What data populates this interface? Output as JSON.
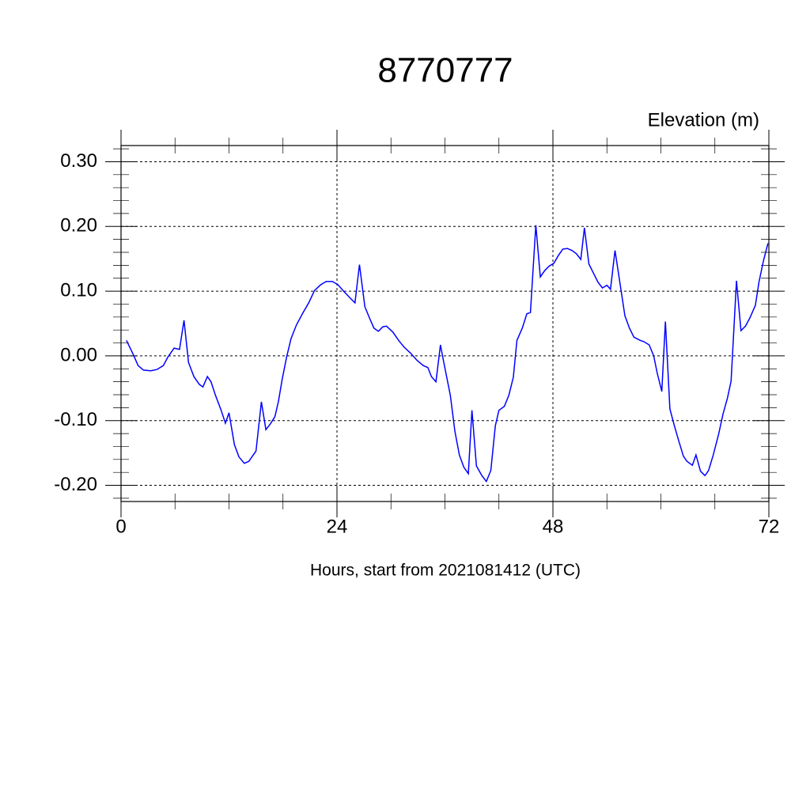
{
  "chart_data": {
    "type": "line",
    "title": "8770777",
    "ylabel": "Elevation (m)",
    "xlabel": "Hours, start from 2021081412 (UTC)",
    "xlim": [
      0,
      72
    ],
    "ylim": [
      -0.225,
      0.325
    ],
    "xticks": [
      0,
      24,
      48,
      72
    ],
    "xminorticks": [
      6,
      12,
      18,
      30,
      36,
      42,
      54,
      60,
      66
    ],
    "yticks": [
      {
        "value": -0.2,
        "label": "-0.20"
      },
      {
        "value": -0.1,
        "label": "-0.10"
      },
      {
        "value": 0,
        "label": "0.00"
      },
      {
        "value": 0.1,
        "label": "0.10"
      },
      {
        "value": 0.2,
        "label": "0.20"
      },
      {
        "value": 0.3,
        "label": "0.30"
      }
    ],
    "yminorticks": [
      -0.22,
      -0.18,
      -0.16,
      -0.14,
      -0.12,
      -0.08,
      -0.06,
      -0.04,
      -0.02,
      0.02,
      0.04,
      0.06,
      0.08,
      0.12,
      0.14,
      0.16,
      0.18,
      0.22,
      0.24,
      0.26,
      0.28,
      0.32
    ],
    "grid": true,
    "series": [
      {
        "color": "#0000ff",
        "x": [
          0.6,
          1.3,
          1.9,
          2.5,
          3.3,
          4.0,
          4.7,
          5.2,
          5.9,
          6.5,
          7.0,
          7.5,
          8.1,
          8.7,
          9.1,
          9.6,
          10.0,
          10.5,
          11.1,
          11.6,
          12.0,
          12.6,
          13.1,
          13.7,
          14.2,
          15.0,
          15.6,
          16.1,
          16.6,
          17.1,
          17.5,
          17.9,
          18.4,
          18.9,
          19.5,
          20.2,
          20.9,
          21.5,
          22.2,
          22.8,
          23.5,
          24.1,
          24.8,
          25.5,
          26.0,
          26.5,
          27.1,
          27.6,
          28.1,
          28.6,
          29.1,
          29.5,
          30.2,
          30.9,
          31.5,
          32.2,
          32.9,
          33.6,
          34.1,
          34.5,
          35.0,
          35.5,
          35.9,
          36.6,
          37.1,
          37.6,
          38.1,
          38.6,
          39.0,
          39.5,
          40.1,
          40.6,
          41.1,
          41.6,
          42.0,
          42.6,
          43.1,
          43.6,
          44.0,
          44.6,
          45.1,
          45.5,
          46.1,
          46.6,
          47.1,
          47.6,
          48.1,
          48.6,
          49.1,
          49.6,
          50.1,
          50.6,
          51.1,
          51.5,
          52.0,
          52.5,
          53.0,
          53.5,
          54.0,
          54.4,
          54.9,
          55.5,
          56.0,
          56.5,
          57.0,
          57.7,
          58.1,
          58.7,
          59.2,
          59.6,
          60.1,
          60.5,
          61.0,
          61.5,
          62.0,
          62.5,
          62.9,
          63.5,
          63.9,
          64.4,
          64.9,
          65.3,
          65.8,
          66.4,
          66.9,
          67.4,
          67.8,
          68.4,
          68.9,
          69.4,
          69.9,
          70.5,
          70.9,
          71.4,
          71.9
        ],
        "values": [
          0.024,
          0.004,
          -0.015,
          -0.022,
          -0.023,
          -0.021,
          -0.015,
          -0.002,
          0.012,
          0.01,
          0.055,
          -0.01,
          -0.032,
          -0.044,
          -0.048,
          -0.032,
          -0.04,
          -0.061,
          -0.083,
          -0.104,
          -0.088,
          -0.137,
          -0.156,
          -0.166,
          -0.163,
          -0.147,
          -0.071,
          -0.114,
          -0.105,
          -0.094,
          -0.07,
          -0.037,
          -0.002,
          0.027,
          0.048,
          0.066,
          0.083,
          0.101,
          0.11,
          0.115,
          0.115,
          0.11,
          0.099,
          0.089,
          0.082,
          0.141,
          0.076,
          0.059,
          0.043,
          0.038,
          0.045,
          0.046,
          0.037,
          0.023,
          0.013,
          0.004,
          -0.007,
          -0.015,
          -0.018,
          -0.032,
          -0.04,
          0.017,
          -0.012,
          -0.061,
          -0.116,
          -0.153,
          -0.172,
          -0.182,
          -0.084,
          -0.17,
          -0.185,
          -0.194,
          -0.177,
          -0.108,
          -0.084,
          -0.078,
          -0.061,
          -0.033,
          0.024,
          0.043,
          0.065,
          0.067,
          0.202,
          0.122,
          0.132,
          0.139,
          0.143,
          0.155,
          0.165,
          0.166,
          0.163,
          0.158,
          0.149,
          0.198,
          0.142,
          0.128,
          0.114,
          0.105,
          0.109,
          0.103,
          0.163,
          0.108,
          0.062,
          0.043,
          0.029,
          0.024,
          0.022,
          0.017,
          0.0,
          -0.027,
          -0.055,
          0.053,
          -0.082,
          -0.108,
          -0.132,
          -0.155,
          -0.163,
          -0.169,
          -0.153,
          -0.178,
          -0.185,
          -0.177,
          -0.154,
          -0.122,
          -0.09,
          -0.065,
          -0.039,
          0.116,
          0.039,
          0.046,
          0.059,
          0.078,
          0.114,
          0.147,
          0.174
        ]
      }
    ]
  }
}
